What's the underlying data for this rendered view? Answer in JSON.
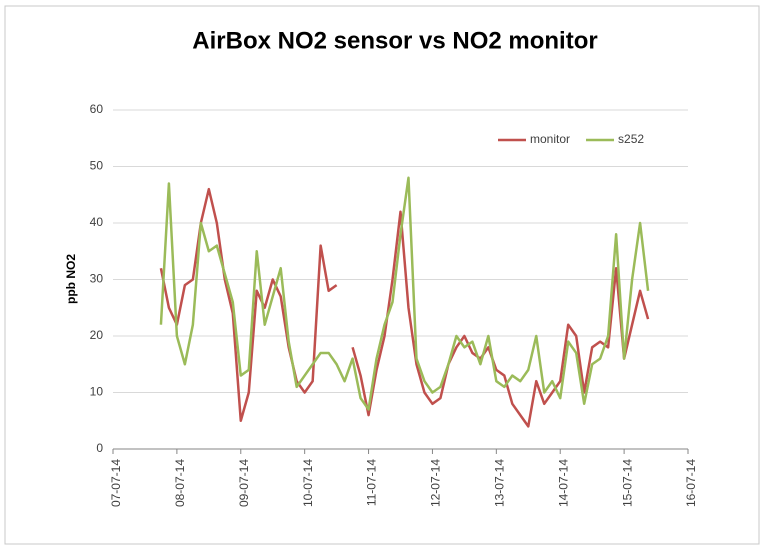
{
  "chart_data": {
    "type": "line",
    "title": "AirBox NO2 sensor vs NO2 monitor",
    "y_label": "ppb NO2",
    "x": [
      0.75,
      0.875,
      1.0,
      1.125,
      1.25,
      1.375,
      1.5,
      1.625,
      1.75,
      1.875,
      2.0,
      2.125,
      2.25,
      2.375,
      2.5,
      2.625,
      2.75,
      2.875,
      3.0,
      3.125,
      3.25,
      3.375,
      3.5,
      3.625,
      3.75,
      3.875,
      4.0,
      4.125,
      4.25,
      4.375,
      4.5,
      4.625,
      4.75,
      4.875,
      5.0,
      5.125,
      5.25,
      5.375,
      5.5,
      5.625,
      5.75,
      5.875,
      6.0,
      6.125,
      6.25,
      6.375,
      6.5,
      6.625,
      6.75,
      6.875,
      7.0,
      7.125,
      7.25,
      7.375,
      7.5,
      7.625,
      7.75,
      7.875,
      8.0,
      8.125,
      8.25,
      8.375
    ],
    "series": [
      {
        "name": "monitor",
        "color": "#c0504d",
        "values": [
          32,
          25,
          22,
          29,
          30,
          40,
          46,
          40,
          30,
          24,
          5,
          10,
          28,
          25,
          30,
          27,
          18,
          12,
          10,
          12,
          36,
          28,
          29,
          null,
          18,
          13,
          6,
          14,
          20,
          30,
          42,
          25,
          15,
          10,
          8,
          9,
          15,
          18,
          20,
          17,
          16,
          18,
          14,
          13,
          8,
          6,
          4,
          12,
          8,
          10,
          12,
          22,
          20,
          10,
          18,
          19,
          18,
          32,
          16,
          22,
          28,
          23
        ]
      },
      {
        "name": "s252",
        "color": "#9bbb59",
        "values": [
          22,
          47,
          20,
          15,
          22,
          40,
          35,
          36,
          31,
          26,
          13,
          14,
          35,
          22,
          27,
          32,
          19,
          11,
          13,
          15,
          17,
          17,
          15,
          12,
          16,
          9,
          7,
          16,
          22,
          26,
          38,
          48,
          16,
          12,
          10,
          11,
          15,
          20,
          18,
          19,
          15,
          20,
          12,
          11,
          13,
          12,
          14,
          20,
          10,
          12,
          9,
          19,
          17,
          8,
          15,
          16,
          20,
          38,
          16,
          30,
          40,
          28
        ]
      }
    ],
    "xlim": [
      0,
      9
    ],
    "xticks": [
      {
        "value": 0,
        "label": "07-07-14"
      },
      {
        "value": 1,
        "label": "08-07-14"
      },
      {
        "value": 2,
        "label": "09-07-14"
      },
      {
        "value": 3,
        "label": "10-07-14"
      },
      {
        "value": 4,
        "label": "11-07-14"
      },
      {
        "value": 5,
        "label": "12-07-14"
      },
      {
        "value": 6,
        "label": "13-07-14"
      },
      {
        "value": 7,
        "label": "14-07-14"
      },
      {
        "value": 8,
        "label": "15-07-14"
      },
      {
        "value": 9,
        "label": "16-07-14"
      }
    ],
    "ylim": [
      0,
      60
    ],
    "yticks": [
      0,
      10,
      20,
      30,
      40,
      50,
      60
    ],
    "grid": true,
    "legend": "upper right"
  }
}
